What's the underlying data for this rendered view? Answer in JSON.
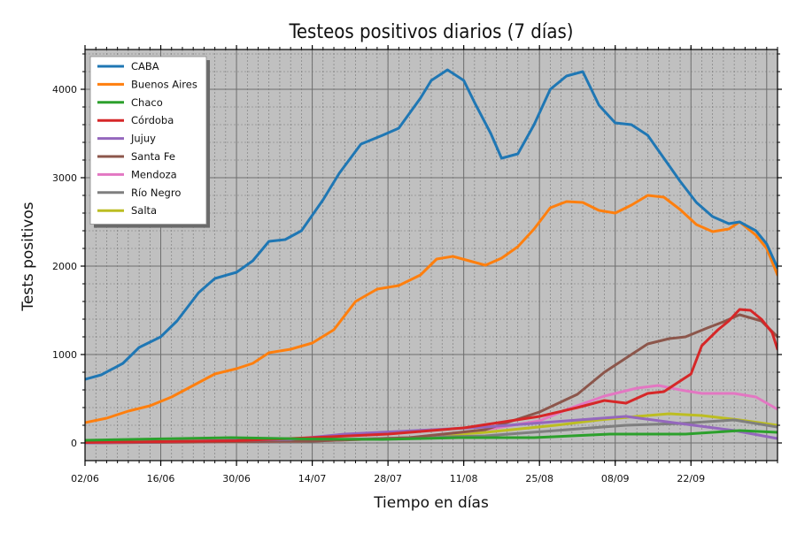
{
  "chart_data": {
    "type": "line",
    "title": "Testeos positivos diarios (7 días)",
    "xlabel": "Tiempo en días",
    "ylabel": "Tests positivos",
    "x_ticks": [
      "02/06",
      "16/06",
      "30/06",
      "14/07",
      "28/07",
      "11/08",
      "25/08",
      "08/09",
      "22/09"
    ],
    "y_ticks": [
      0,
      1000,
      2000,
      3000,
      4000
    ],
    "ylim": [
      -200,
      4450
    ],
    "xlim": [
      "2020-06-02",
      "2020-10-08"
    ],
    "grid": true,
    "legend_position": "top-left",
    "series": [
      {
        "name": "CABA",
        "color": "#1f77b4",
        "points": [
          [
            "2020-06-02",
            720
          ],
          [
            "2020-06-05",
            770
          ],
          [
            "2020-06-09",
            900
          ],
          [
            "2020-06-12",
            1080
          ],
          [
            "2020-06-16",
            1200
          ],
          [
            "2020-06-19",
            1380
          ],
          [
            "2020-06-23",
            1700
          ],
          [
            "2020-06-26",
            1860
          ],
          [
            "2020-06-30",
            1930
          ],
          [
            "2020-07-03",
            2060
          ],
          [
            "2020-07-06",
            2280
          ],
          [
            "2020-07-09",
            2300
          ],
          [
            "2020-07-12",
            2400
          ],
          [
            "2020-07-16",
            2750
          ],
          [
            "2020-07-19",
            3050
          ],
          [
            "2020-07-23",
            3380
          ],
          [
            "2020-07-27",
            3480
          ],
          [
            "2020-07-30",
            3560
          ],
          [
            "2020-08-03",
            3900
          ],
          [
            "2020-08-05",
            4100
          ],
          [
            "2020-08-08",
            4220
          ],
          [
            "2020-08-11",
            4100
          ],
          [
            "2020-08-13",
            3850
          ],
          [
            "2020-08-16",
            3500
          ],
          [
            "2020-08-18",
            3220
          ],
          [
            "2020-08-21",
            3270
          ],
          [
            "2020-08-24",
            3600
          ],
          [
            "2020-08-27",
            4000
          ],
          [
            "2020-08-30",
            4150
          ],
          [
            "2020-09-02",
            4200
          ],
          [
            "2020-09-05",
            3820
          ],
          [
            "2020-09-08",
            3620
          ],
          [
            "2020-09-11",
            3600
          ],
          [
            "2020-09-14",
            3480
          ],
          [
            "2020-09-17",
            3220
          ],
          [
            "2020-09-20",
            2960
          ],
          [
            "2020-09-23",
            2720
          ],
          [
            "2020-09-26",
            2560
          ],
          [
            "2020-09-29",
            2480
          ],
          [
            "2020-10-01",
            2500
          ],
          [
            "2020-10-04",
            2400
          ],
          [
            "2020-10-06",
            2250
          ],
          [
            "2020-10-08",
            1980
          ]
        ]
      },
      {
        "name": "Buenos Aires",
        "color": "#ff7f0e",
        "points": [
          [
            "2020-06-02",
            230
          ],
          [
            "2020-06-06",
            280
          ],
          [
            "2020-06-10",
            360
          ],
          [
            "2020-06-14",
            420
          ],
          [
            "2020-06-18",
            520
          ],
          [
            "2020-06-22",
            650
          ],
          [
            "2020-06-26",
            780
          ],
          [
            "2020-06-30",
            840
          ],
          [
            "2020-07-03",
            900
          ],
          [
            "2020-07-06",
            1020
          ],
          [
            "2020-07-10",
            1060
          ],
          [
            "2020-07-14",
            1130
          ],
          [
            "2020-07-18",
            1280
          ],
          [
            "2020-07-22",
            1600
          ],
          [
            "2020-07-26",
            1740
          ],
          [
            "2020-07-30",
            1780
          ],
          [
            "2020-08-03",
            1900
          ],
          [
            "2020-08-06",
            2080
          ],
          [
            "2020-08-09",
            2110
          ],
          [
            "2020-08-12",
            2060
          ],
          [
            "2020-08-15",
            2010
          ],
          [
            "2020-08-18",
            2090
          ],
          [
            "2020-08-21",
            2220
          ],
          [
            "2020-08-24",
            2420
          ],
          [
            "2020-08-27",
            2660
          ],
          [
            "2020-08-30",
            2730
          ],
          [
            "2020-09-02",
            2720
          ],
          [
            "2020-09-05",
            2630
          ],
          [
            "2020-09-08",
            2600
          ],
          [
            "2020-09-11",
            2690
          ],
          [
            "2020-09-14",
            2800
          ],
          [
            "2020-09-17",
            2780
          ],
          [
            "2020-09-20",
            2640
          ],
          [
            "2020-09-23",
            2470
          ],
          [
            "2020-09-26",
            2390
          ],
          [
            "2020-09-29",
            2420
          ],
          [
            "2020-10-01",
            2500
          ],
          [
            "2020-10-04",
            2350
          ],
          [
            "2020-10-06",
            2200
          ],
          [
            "2020-10-08",
            1900
          ]
        ]
      },
      {
        "name": "Chaco",
        "color": "#2ca02c",
        "points": [
          [
            "2020-06-02",
            30
          ],
          [
            "2020-06-15",
            45
          ],
          [
            "2020-06-29",
            60
          ],
          [
            "2020-07-13",
            45
          ],
          [
            "2020-07-27",
            40
          ],
          [
            "2020-08-10",
            60
          ],
          [
            "2020-08-24",
            60
          ],
          [
            "2020-09-07",
            100
          ],
          [
            "2020-09-21",
            100
          ],
          [
            "2020-10-01",
            140
          ],
          [
            "2020-10-08",
            120
          ]
        ]
      },
      {
        "name": "Córdoba",
        "color": "#d62728",
        "points": [
          [
            "2020-06-02",
            5
          ],
          [
            "2020-06-30",
            25
          ],
          [
            "2020-07-14",
            60
          ],
          [
            "2020-07-28",
            100
          ],
          [
            "2020-08-11",
            170
          ],
          [
            "2020-08-25",
            300
          ],
          [
            "2020-09-01",
            400
          ],
          [
            "2020-09-06",
            480
          ],
          [
            "2020-09-10",
            450
          ],
          [
            "2020-09-14",
            560
          ],
          [
            "2020-09-17",
            580
          ],
          [
            "2020-09-20",
            700
          ],
          [
            "2020-09-22",
            780
          ],
          [
            "2020-09-24",
            1100
          ],
          [
            "2020-09-27",
            1280
          ],
          [
            "2020-09-29",
            1380
          ],
          [
            "2020-10-01",
            1510
          ],
          [
            "2020-10-03",
            1500
          ],
          [
            "2020-10-05",
            1400
          ],
          [
            "2020-10-07",
            1250
          ],
          [
            "2020-10-08",
            1060
          ]
        ]
      },
      {
        "name": "Jujuy",
        "color": "#9467bd",
        "points": [
          [
            "2020-06-02",
            0
          ],
          [
            "2020-07-10",
            40
          ],
          [
            "2020-07-20",
            100
          ],
          [
            "2020-07-30",
            130
          ],
          [
            "2020-08-15",
            180
          ],
          [
            "2020-08-30",
            250
          ],
          [
            "2020-09-10",
            300
          ],
          [
            "2020-09-20",
            220
          ],
          [
            "2020-09-30",
            140
          ],
          [
            "2020-10-08",
            50
          ]
        ]
      },
      {
        "name": "Santa Fe",
        "color": "#8c564b",
        "points": [
          [
            "2020-06-02",
            0
          ],
          [
            "2020-07-14",
            20
          ],
          [
            "2020-08-01",
            60
          ],
          [
            "2020-08-15",
            150
          ],
          [
            "2020-08-25",
            350
          ],
          [
            "2020-09-01",
            550
          ],
          [
            "2020-09-06",
            800
          ],
          [
            "2020-09-11",
            1000
          ],
          [
            "2020-09-14",
            1120
          ],
          [
            "2020-09-18",
            1180
          ],
          [
            "2020-09-21",
            1200
          ],
          [
            "2020-09-25",
            1300
          ],
          [
            "2020-09-28",
            1370
          ],
          [
            "2020-10-01",
            1450
          ],
          [
            "2020-10-05",
            1380
          ],
          [
            "2020-10-08",
            1200
          ]
        ]
      },
      {
        "name": "Mendoza",
        "color": "#e377c2",
        "points": [
          [
            "2020-06-02",
            0
          ],
          [
            "2020-07-14",
            20
          ],
          [
            "2020-08-01",
            60
          ],
          [
            "2020-08-15",
            150
          ],
          [
            "2020-08-25",
            250
          ],
          [
            "2020-08-31",
            400
          ],
          [
            "2020-09-06",
            530
          ],
          [
            "2020-09-12",
            620
          ],
          [
            "2020-09-16",
            650
          ],
          [
            "2020-09-20",
            600
          ],
          [
            "2020-09-24",
            560
          ],
          [
            "2020-09-30",
            560
          ],
          [
            "2020-10-04",
            520
          ],
          [
            "2020-10-08",
            380
          ]
        ]
      },
      {
        "name": "Río Negro",
        "color": "#7f7f7f",
        "points": [
          [
            "2020-06-02",
            5
          ],
          [
            "2020-07-14",
            30
          ],
          [
            "2020-08-01",
            60
          ],
          [
            "2020-08-15",
            80
          ],
          [
            "2020-08-28",
            140
          ],
          [
            "2020-09-10",
            200
          ],
          [
            "2020-09-20",
            220
          ],
          [
            "2020-09-30",
            260
          ],
          [
            "2020-10-08",
            180
          ]
        ]
      },
      {
        "name": "Salta",
        "color": "#bcbd22",
        "points": [
          [
            "2020-06-02",
            0
          ],
          [
            "2020-07-14",
            20
          ],
          [
            "2020-08-01",
            60
          ],
          [
            "2020-08-15",
            120
          ],
          [
            "2020-08-28",
            200
          ],
          [
            "2020-09-05",
            260
          ],
          [
            "2020-09-12",
            300
          ],
          [
            "2020-09-18",
            330
          ],
          [
            "2020-09-24",
            310
          ],
          [
            "2020-10-01",
            260
          ],
          [
            "2020-10-08",
            200
          ]
        ]
      }
    ]
  }
}
